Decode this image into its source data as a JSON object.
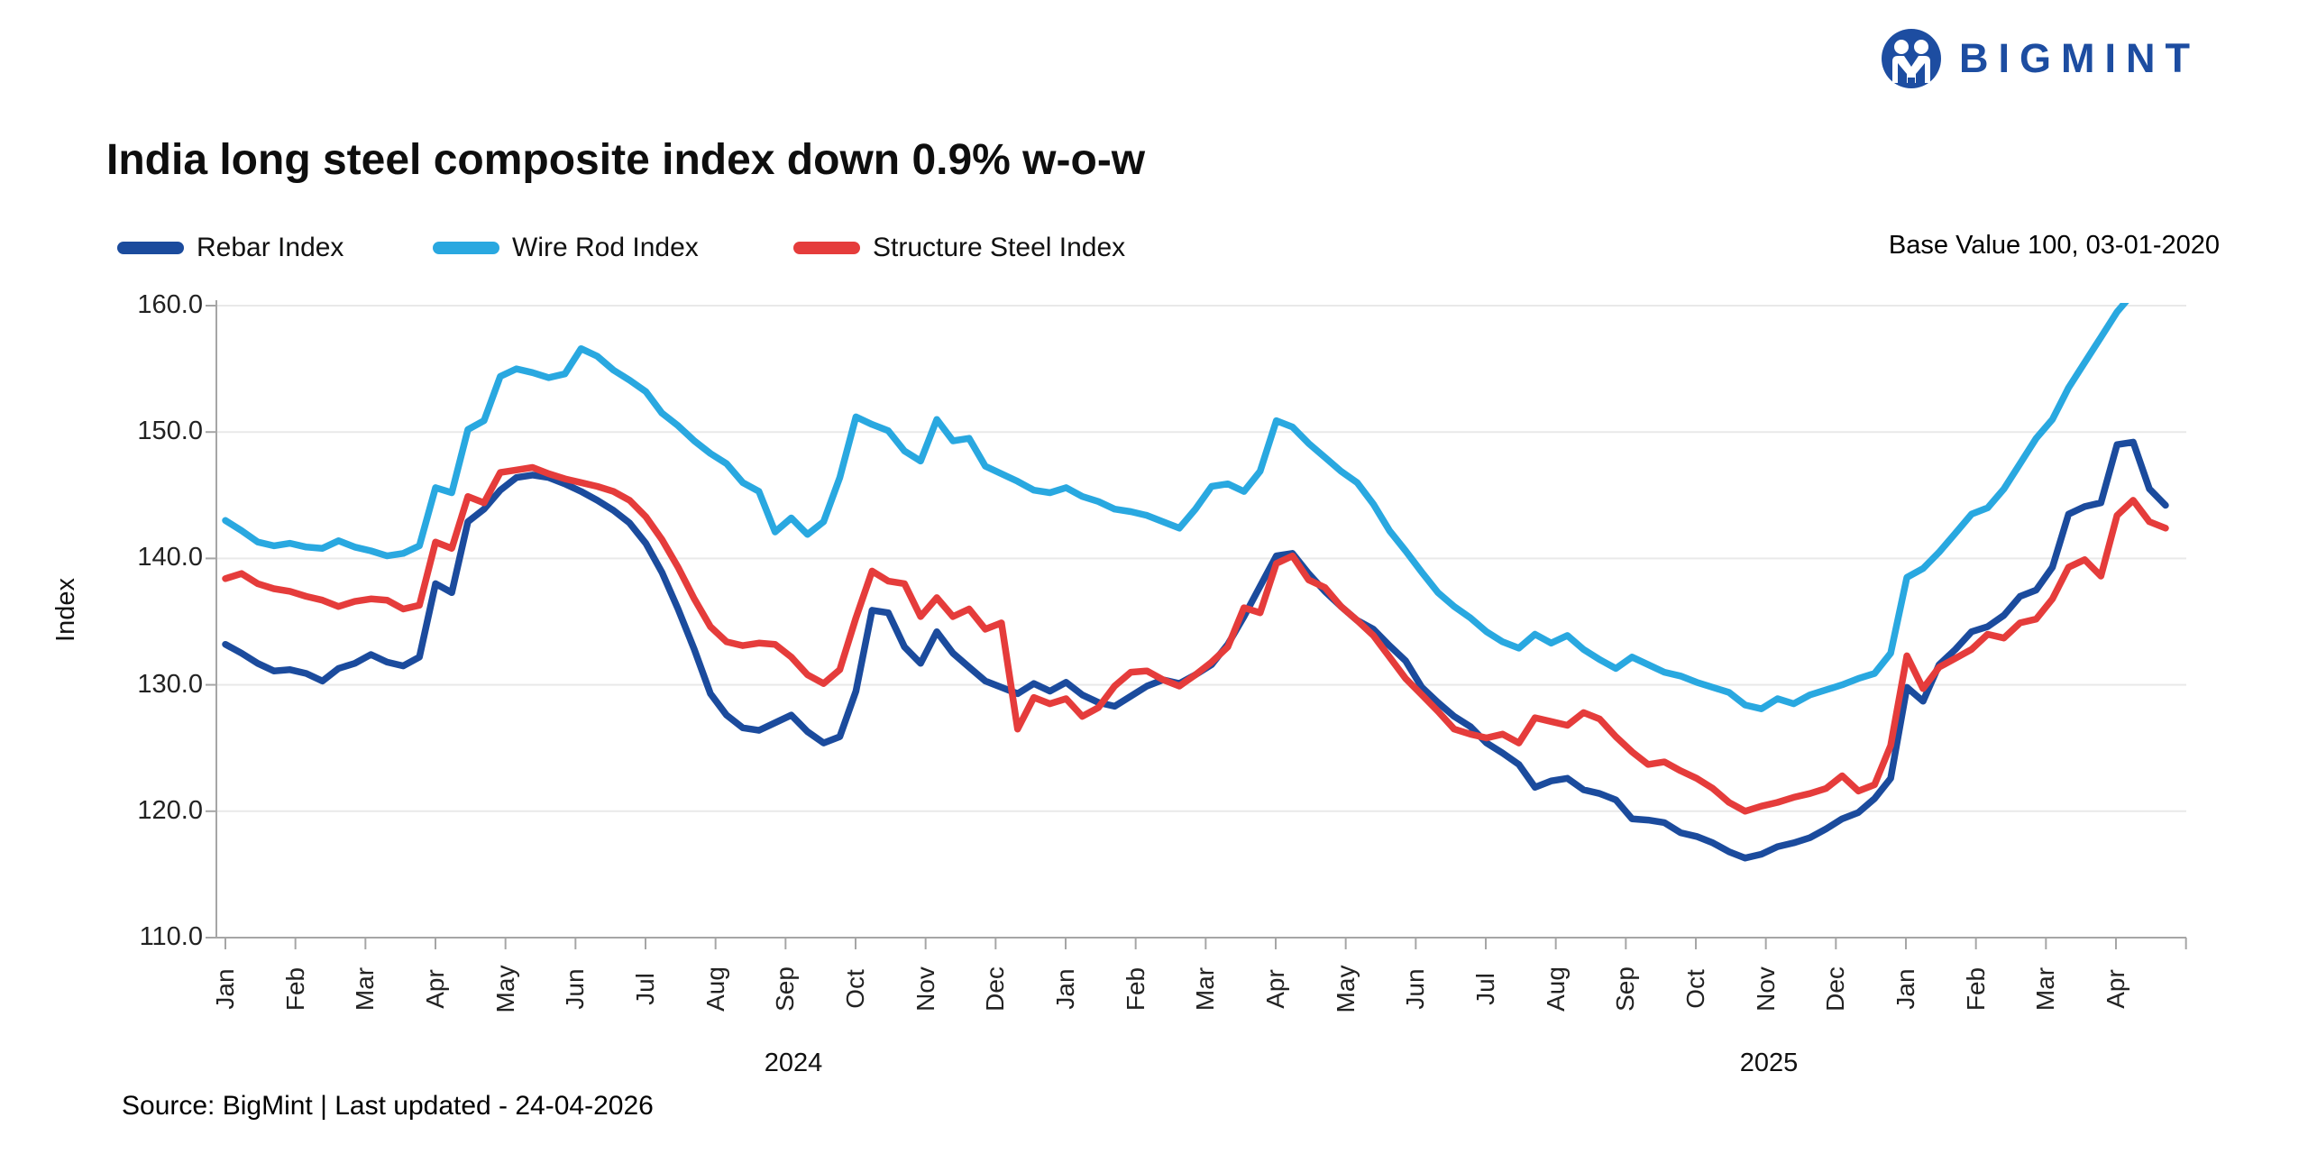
{
  "logo": {
    "brand": "BIGMINT"
  },
  "header": {
    "title": "India long steel composite index down 0.9% w-o-w",
    "note": "Base Value 100, 03-01-2020"
  },
  "legend": [
    {
      "label": "Rebar Index",
      "color": "#1b4b9d"
    },
    {
      "label": "Wire Rod Index",
      "color": "#29a8e0"
    },
    {
      "label": "Structure Steel Index",
      "color": "#e53c3b"
    }
  ],
  "footer": {
    "source": "Source: BigMint | Last updated - 24-04-2026"
  },
  "chart_data": {
    "type": "line",
    "title": "India long steel composite index down 0.9% w-o-w",
    "ylabel": "Index",
    "ylim": [
      110,
      160
    ],
    "y_ticks": [
      "160.0",
      "150.0",
      "140.0",
      "130.0",
      "120.0",
      "110.0"
    ],
    "grid": "horizontal",
    "legend_position": "top-left",
    "x_unit": "weekly (approx. 121 weeks, Jan 2024 - 24 Apr 2026)",
    "months": [
      "Jan",
      "Feb",
      "Mar",
      "Apr",
      "May",
      "Jun",
      "Jul",
      "Aug",
      "Sep",
      "Oct",
      "Nov",
      "Dec",
      "Jan",
      "Feb",
      "Mar",
      "Apr",
      "May",
      "Jun",
      "Jul",
      "Aug",
      "Sep",
      "Oct",
      "Nov",
      "Dec",
      "Jan",
      "Feb",
      "Mar",
      "Apr"
    ],
    "years": [
      {
        "label": "2024"
      },
      {
        "label": "2025"
      }
    ],
    "series": [
      {
        "name": "Rebar Index",
        "color": "#1b4b9d",
        "values": [
          133.2,
          132.5,
          131.7,
          131.1,
          131.2,
          130.9,
          130.3,
          131.3,
          131.7,
          132.4,
          131.8,
          131.5,
          132.2,
          138.0,
          137.3,
          142.9,
          143.9,
          145.4,
          146.4,
          146.6,
          146.4,
          145.9,
          145.3,
          144.6,
          143.8,
          142.8,
          141.2,
          138.9,
          136.0,
          132.8,
          129.3,
          127.6,
          126.6,
          126.4,
          127.0,
          127.6,
          126.3,
          125.4,
          125.9,
          129.5,
          135.9,
          135.7,
          133.0,
          131.7,
          134.2,
          132.5,
          131.4,
          130.3,
          129.8,
          129.3,
          130.1,
          129.5,
          130.2,
          129.2,
          128.6,
          128.3,
          129.1,
          129.9,
          130.4,
          130.1,
          130.8,
          131.6,
          133.2,
          135.4,
          137.8,
          140.2,
          140.4,
          138.8,
          137.4,
          136.2,
          135.1,
          134.4,
          133.1,
          131.9,
          129.8,
          128.6,
          127.5,
          126.7,
          125.4,
          124.6,
          123.7,
          121.9,
          122.4,
          122.6,
          121.7,
          121.4,
          120.9,
          119.4,
          119.3,
          119.1,
          118.3,
          118.0,
          117.5,
          116.8,
          116.3,
          116.6,
          117.2,
          117.5,
          117.9,
          118.6,
          119.4,
          119.9,
          121.0,
          122.6,
          129.8,
          128.7,
          131.6,
          132.8,
          134.2,
          134.6,
          135.5,
          137.0,
          137.5,
          139.3,
          143.5,
          144.1,
          144.4,
          149.0,
          149.2,
          145.5,
          144.2
        ]
      },
      {
        "name": "Wire Rod Index",
        "color": "#29a8e0",
        "values": [
          143.0,
          142.2,
          141.3,
          141.0,
          141.2,
          140.9,
          140.8,
          141.4,
          140.9,
          140.6,
          140.2,
          140.4,
          141.0,
          145.6,
          145.2,
          150.2,
          150.9,
          154.4,
          155.0,
          154.7,
          154.3,
          154.6,
          156.6,
          156.0,
          154.9,
          154.1,
          153.2,
          151.5,
          150.5,
          149.3,
          148.3,
          147.5,
          146.0,
          145.3,
          142.1,
          143.2,
          141.9,
          142.9,
          146.4,
          151.2,
          150.6,
          150.1,
          148.5,
          147.7,
          151.0,
          149.3,
          149.5,
          147.3,
          146.7,
          146.1,
          145.4,
          145.2,
          145.6,
          144.9,
          144.5,
          143.9,
          143.7,
          143.4,
          142.9,
          142.4,
          143.9,
          145.7,
          145.9,
          145.3,
          146.9,
          150.9,
          150.4,
          149.1,
          148.0,
          146.9,
          146.0,
          144.3,
          142.2,
          140.6,
          138.9,
          137.3,
          136.2,
          135.3,
          134.2,
          133.4,
          132.9,
          134.0,
          133.3,
          133.9,
          132.8,
          132.0,
          131.3,
          132.2,
          131.6,
          131.0,
          130.7,
          130.2,
          129.8,
          129.4,
          128.4,
          128.1,
          128.9,
          128.5,
          129.2,
          129.6,
          130.0,
          130.5,
          130.9,
          132.5,
          138.5,
          139.2,
          140.5,
          142.0,
          143.5,
          144.0,
          145.5,
          147.5,
          149.5,
          151.0,
          153.5,
          155.5,
          157.5,
          159.5,
          161.0,
          162.0,
          163.0
        ]
      },
      {
        "name": "Structure Steel Index",
        "color": "#e53c3b",
        "values": [
          138.4,
          138.8,
          138.0,
          137.6,
          137.4,
          137.0,
          136.7,
          136.2,
          136.6,
          136.8,
          136.7,
          136.0,
          136.3,
          141.3,
          140.8,
          144.9,
          144.4,
          146.8,
          147.0,
          147.2,
          146.7,
          146.3,
          146.0,
          145.7,
          145.3,
          144.6,
          143.3,
          141.5,
          139.3,
          136.8,
          134.6,
          133.4,
          133.1,
          133.3,
          133.2,
          132.2,
          130.8,
          130.1,
          131.2,
          135.3,
          139.0,
          138.2,
          138.0,
          135.4,
          136.9,
          135.4,
          136.0,
          134.4,
          134.9,
          126.5,
          129.0,
          128.5,
          128.9,
          127.5,
          128.2,
          129.9,
          131.0,
          131.1,
          130.4,
          129.9,
          130.8,
          131.8,
          133.0,
          136.1,
          135.7,
          139.6,
          140.2,
          138.3,
          137.7,
          136.2,
          135.1,
          133.9,
          132.2,
          130.5,
          129.2,
          127.9,
          126.5,
          126.1,
          125.8,
          126.1,
          125.4,
          127.4,
          127.1,
          126.8,
          127.8,
          127.3,
          125.9,
          124.7,
          123.7,
          123.9,
          123.2,
          122.6,
          121.8,
          120.7,
          120.0,
          120.4,
          120.7,
          121.1,
          121.4,
          121.8,
          122.8,
          121.6,
          122.1,
          125.2,
          132.3,
          129.7,
          131.4,
          132.1,
          132.8,
          134.0,
          133.7,
          134.9,
          135.2,
          136.8,
          139.3,
          139.9,
          138.6,
          143.4,
          144.6,
          142.9,
          142.4
        ]
      }
    ]
  }
}
